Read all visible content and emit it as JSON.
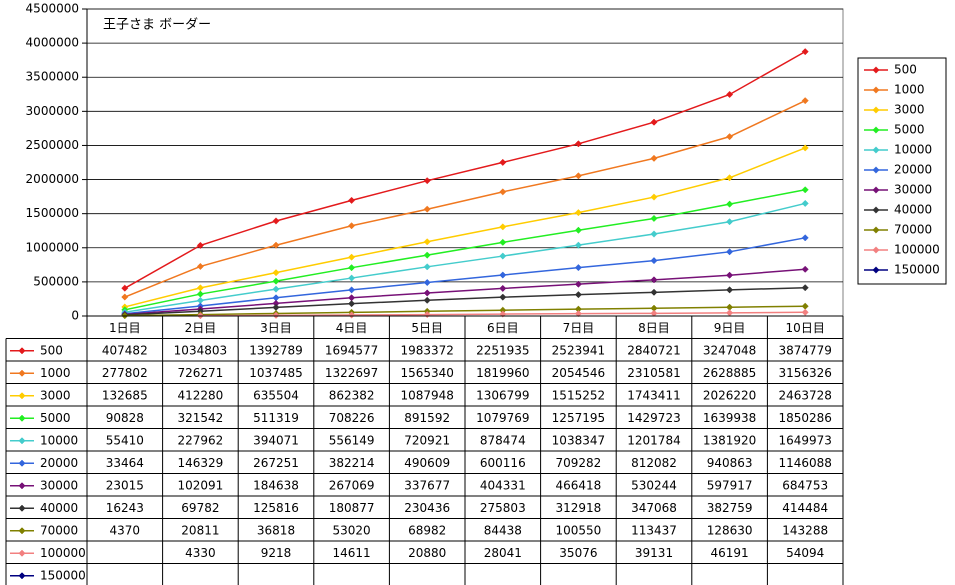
{
  "chart_data": {
    "type": "line",
    "title": "王子さま ボーダー",
    "ylim": [
      0,
      4500000
    ],
    "y_ticks": [
      0,
      500000,
      1000000,
      1500000,
      2000000,
      2500000,
      3000000,
      3500000,
      4000000,
      4500000
    ],
    "grid": "horizontal",
    "legend_position": "right",
    "categories": [
      "1日目",
      "2日目",
      "3日目",
      "4日目",
      "5日目",
      "6日目",
      "7日目",
      "8日目",
      "9日目",
      "10日目"
    ],
    "series": [
      {
        "name": "500",
        "color": "#e31a1c",
        "values": [
          407482,
          1034803,
          1392789,
          1694577,
          1983372,
          2251935,
          2523941,
          2840721,
          3247048,
          3874779
        ]
      },
      {
        "name": "1000",
        "color": "#f07820",
        "values": [
          277802,
          726271,
          1037485,
          1322697,
          1565340,
          1819960,
          2054546,
          2310581,
          2628885,
          3156326
        ]
      },
      {
        "name": "3000",
        "color": "#ffcc00",
        "values": [
          132685,
          412280,
          635504,
          862382,
          1087948,
          1306799,
          1515252,
          1743411,
          2026220,
          2463728
        ]
      },
      {
        "name": "5000",
        "color": "#22ee22",
        "values": [
          90828,
          321542,
          511319,
          708226,
          891592,
          1079769,
          1257195,
          1429723,
          1639938,
          1850286
        ]
      },
      {
        "name": "10000",
        "color": "#44cccc",
        "values": [
          55410,
          227962,
          394071,
          556149,
          720921,
          878474,
          1038347,
          1201784,
          1381920,
          1649973
        ]
      },
      {
        "name": "20000",
        "color": "#3366dd",
        "values": [
          33464,
          146329,
          267251,
          382214,
          490609,
          600116,
          709282,
          812082,
          940863,
          1146088
        ]
      },
      {
        "name": "30000",
        "color": "#771177",
        "values": [
          23015,
          102091,
          184638,
          267069,
          337677,
          404331,
          466418,
          530244,
          597917,
          684753
        ]
      },
      {
        "name": "40000",
        "color": "#333333",
        "values": [
          16243,
          69782,
          125816,
          180877,
          230436,
          275803,
          312918,
          347068,
          382759,
          414484
        ]
      },
      {
        "name": "70000",
        "color": "#808000",
        "values": [
          4370,
          20811,
          36818,
          53020,
          68982,
          84438,
          100550,
          113437,
          128630,
          143288
        ]
      },
      {
        "name": "100000",
        "color": "#f28080",
        "values": [
          null,
          4330,
          9218,
          14611,
          20880,
          28041,
          35076,
          39131,
          46191,
          54094
        ]
      },
      {
        "name": "150000",
        "color": "#000080",
        "values": [
          null,
          null,
          null,
          null,
          null,
          null,
          null,
          null,
          null,
          null
        ]
      }
    ]
  }
}
